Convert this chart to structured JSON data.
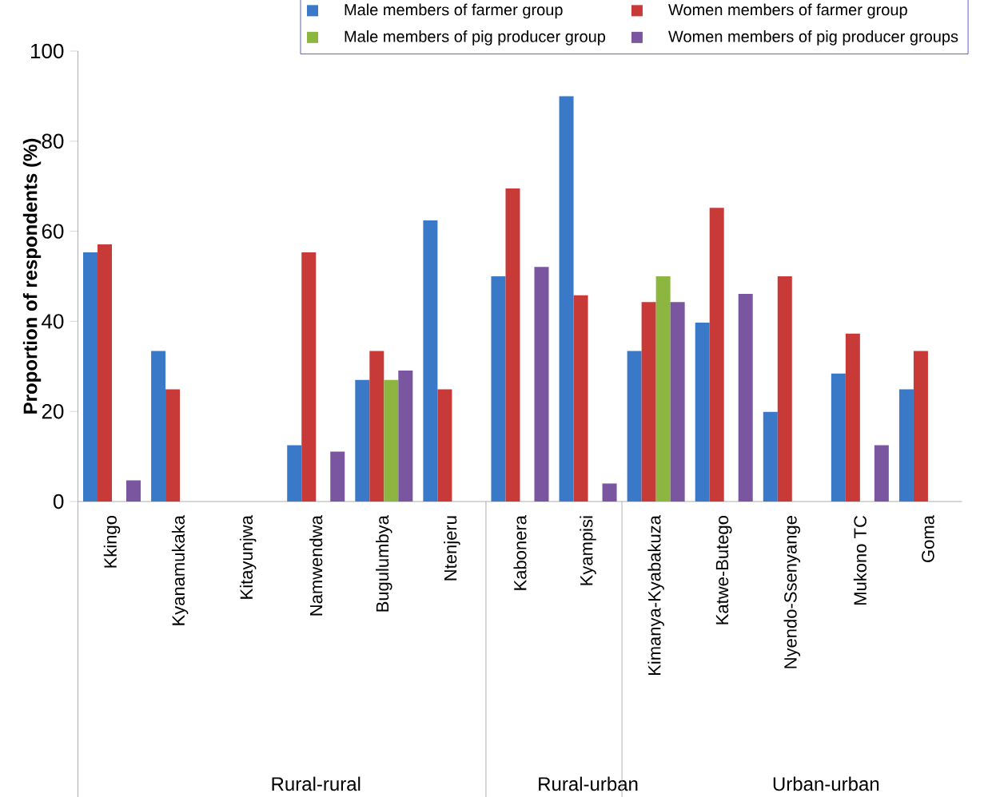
{
  "chart_data": {
    "type": "bar",
    "ylabel": "Proportion of respondents (%)",
    "categories": [
      "Kkingo",
      "Kyanamukaka",
      "Kitayunjwa",
      "Namwendwa",
      "Bugulumbya",
      "Ntenjeru",
      "Kabonera",
      "Kyampisi",
      "Kimanya-Kyabakuza",
      "Katwe-Butego",
      "Nyendo-Ssenyange",
      "Mukono TC",
      "Goma"
    ],
    "series": [
      {
        "name": "Male members of farmer group",
        "color": "#3a78c8",
        "values": [
          55.3,
          33.4,
          null,
          12.5,
          27.0,
          62.4,
          50.0,
          90.0,
          33.4,
          39.7,
          19.9,
          28.4,
          24.9
        ]
      },
      {
        "name": "Women members of farmer group",
        "color": "#c83a38",
        "values": [
          57.1,
          24.9,
          null,
          55.3,
          33.4,
          24.9,
          69.5,
          45.8,
          44.3,
          65.2,
          50.0,
          37.3,
          33.4
        ]
      },
      {
        "name": "Male members of pig producer group",
        "color": "#8db640",
        "values": [
          null,
          null,
          null,
          null,
          27.0,
          null,
          null,
          null,
          50.0,
          null,
          null,
          null,
          null
        ]
      },
      {
        "name": "Women members of pig producer groups",
        "color": "#7a55a0",
        "values": [
          4.7,
          null,
          null,
          11.1,
          29.1,
          null,
          52.1,
          4.0,
          44.3,
          46.1,
          null,
          12.5,
          null
        ]
      }
    ],
    "ylim": [
      0,
      100
    ],
    "yticks": [
      0,
      20,
      40,
      60,
      80,
      100
    ],
    "grid": false,
    "legend": "top",
    "annotations": [
      "Rural-rural",
      "Rural-urban",
      "Urban-urban"
    ]
  }
}
